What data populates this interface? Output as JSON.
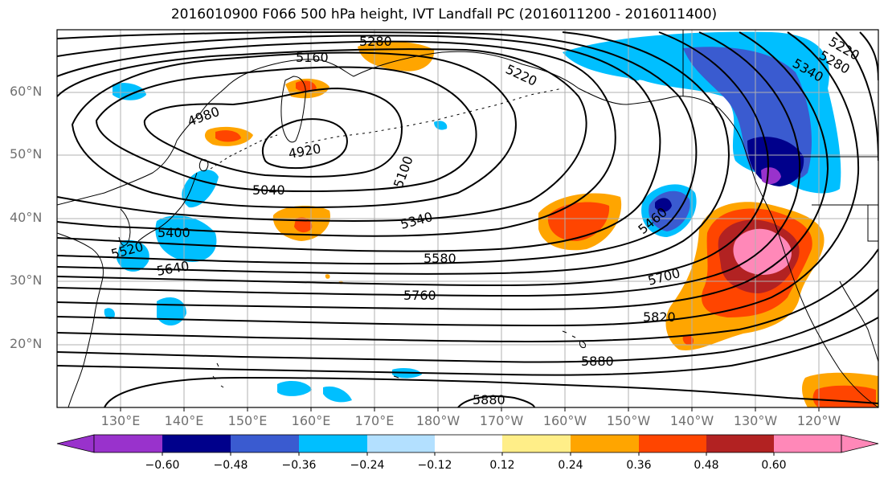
{
  "title": "2016010900 F066 500 hPa height, IVT Landfall PC (2016011200 - 2016011400)",
  "lat_labels": [
    "60°N",
    "50°N",
    "40°N",
    "30°N",
    "20°N"
  ],
  "lon_labels": [
    "130°E",
    "140°E",
    "150°E",
    "160°E",
    "170°E",
    "180°W",
    "170°W",
    "160°W",
    "150°W",
    "140°W",
    "130°W",
    "120°W"
  ],
  "contour_labels": [
    "5280",
    "5160",
    "5220",
    "5280",
    "5340",
    "5220",
    "4980",
    "4920",
    "5100",
    "5040",
    "5340",
    "5460",
    "5400",
    "5520",
    "5640",
    "5580",
    "5700",
    "5760",
    "5820",
    "5880",
    "5880"
  ],
  "colorbar": {
    "tick_labels": [
      "−0.60",
      "−0.48",
      "−0.36",
      "−0.24",
      "−0.12",
      "0.12",
      "0.24",
      "0.36",
      "0.48",
      "0.60"
    ],
    "colors": [
      "#9932cc",
      "#00008b",
      "#3a5bd0",
      "#00bfff",
      "#b3e0ff",
      "#ffffff",
      "#ffee88",
      "#ffa500",
      "#ff4500",
      "#b22222",
      "#ff88b8"
    ]
  },
  "colors": {
    "frame": "#000000",
    "gridline": "#b0b0b0",
    "coast": "#000000",
    "contour": "#000000"
  }
}
